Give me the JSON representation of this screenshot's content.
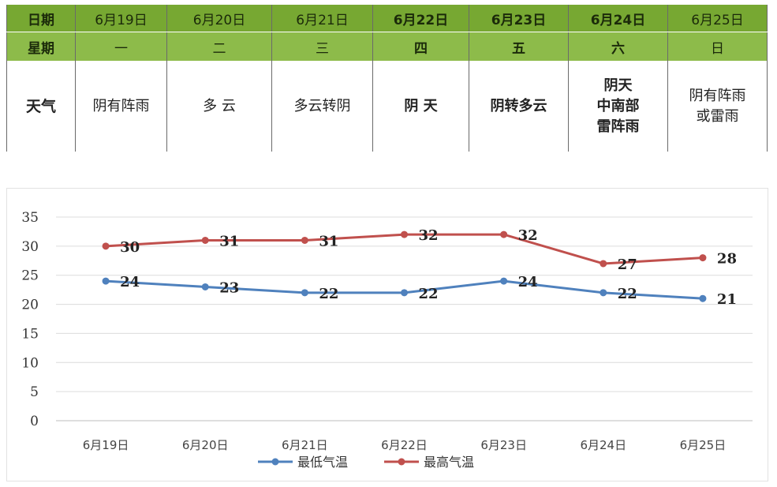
{
  "table": {
    "row_labels": {
      "date": "日期",
      "weekday": "星期",
      "weather": "天气"
    },
    "days": [
      {
        "date": "6月19日",
        "weekday": "一",
        "weather": [
          "阴有阵雨"
        ]
      },
      {
        "date": "6月20日",
        "weekday": "二",
        "weather": [
          "多 云"
        ]
      },
      {
        "date": "6月21日",
        "weekday": "三",
        "weather": [
          "多云转阴"
        ]
      },
      {
        "date": "6月22日",
        "weekday": "四",
        "weather": [
          "阴 天"
        ]
      },
      {
        "date": "6月23日",
        "weekday": "五",
        "weather": [
          "阴转多云"
        ]
      },
      {
        "date": "6月24日",
        "weekday": "六",
        "weather": [
          "阴天",
          "中南部",
          "雷阵雨"
        ]
      },
      {
        "date": "6月25日",
        "weekday": "日",
        "weather": [
          "阴有阵雨",
          "或雷雨"
        ]
      }
    ]
  },
  "chart_data": {
    "type": "line",
    "categories": [
      "6月19日",
      "6月20日",
      "6月21日",
      "6月22日",
      "6月23日",
      "6月24日",
      "6月25日"
    ],
    "series": [
      {
        "name": "最低气温",
        "color": "#4f81bd",
        "values": [
          24,
          23,
          22,
          22,
          24,
          22,
          21
        ]
      },
      {
        "name": "最高气温",
        "color": "#c0504d",
        "values": [
          30,
          31,
          31,
          32,
          32,
          27,
          28
        ]
      }
    ],
    "ylim": [
      0,
      35
    ],
    "yticks": [
      0,
      5,
      10,
      15,
      20,
      25,
      30,
      35
    ],
    "grid": true,
    "legend": "bottom",
    "data_labels": true,
    "title": "",
    "xlabel": "",
    "ylabel": ""
  }
}
